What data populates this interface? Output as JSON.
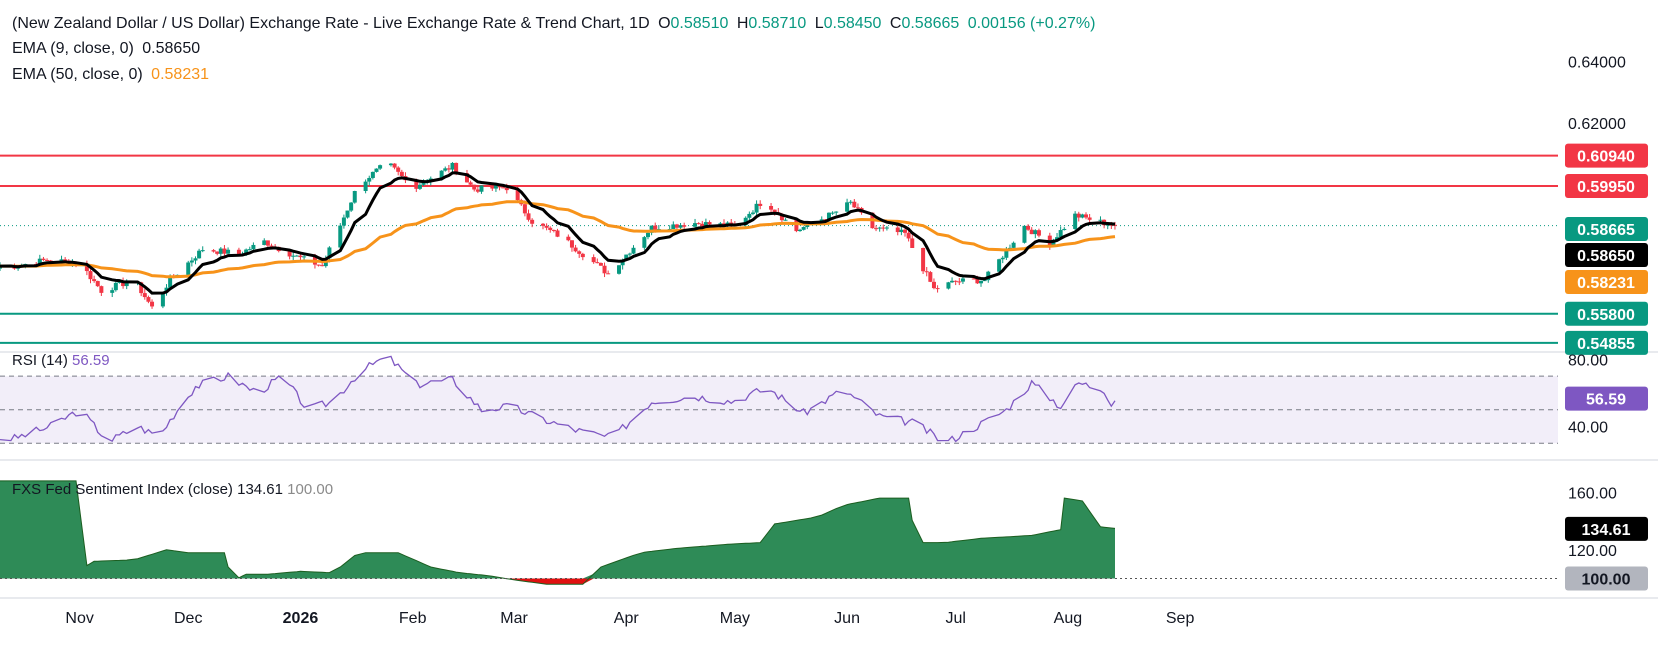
{
  "header": {
    "title": "(New Zealand Dollar / US Dollar) Exchange Rate - Live Exchange Rate & Trend Chart, 1D",
    "o_label": "O",
    "o": "0.58510",
    "h_label": "H",
    "h": "0.58710",
    "l_label": "L",
    "l": "0.58450",
    "c_label": "C",
    "c": "0.58665",
    "change": "0.00156 (+0.27%)",
    "ema9_label": "EMA (9, close, 0)",
    "ema9_value": "0.58650",
    "ema50_label": "EMA (50, close, 0)",
    "ema50_value": "0.58231"
  },
  "rsi_panel": {
    "label": "RSI (14)",
    "value": "56.59",
    "tag": "56.59",
    "ticks": [
      "80.00",
      "40.00"
    ]
  },
  "sentiment_panel": {
    "label": "FXS Fed Sentiment Index (close)",
    "value": "134.61",
    "baseline": "100.00",
    "ticks": [
      "160.00",
      "120.00"
    ],
    "tag_value": "134.61",
    "tag_baseline": "100.00"
  },
  "price_axis": {
    "ticks": [
      "0.64000",
      "0.62000"
    ]
  },
  "levels": [
    {
      "value": "0.60940",
      "color": "#f23645"
    },
    {
      "value": "0.59950",
      "color": "#f23645"
    },
    {
      "value": "0.55800",
      "color": "#089981"
    },
    {
      "value": "0.54855",
      "color": "#089981"
    }
  ],
  "price_tags": [
    {
      "value": "0.58665",
      "color": "#089981"
    },
    {
      "value": "0.58650",
      "color": "#000000"
    },
    {
      "value": "0.58231",
      "color": "#f7931a"
    }
  ],
  "months": [
    "Nov",
    "Dec",
    "2026",
    "Feb",
    "Mar",
    "Apr",
    "May",
    "Jun",
    "Jul",
    "Aug",
    "Sep"
  ],
  "colors": {
    "up": "#089981",
    "down": "#f23645",
    "ema9": "#000000",
    "ema50": "#f7931a",
    "rsi": "#7e57c2",
    "sentiment": "#2e8b57",
    "sentiment_neg": "#e01010"
  },
  "chart_data": {
    "type": "candlestick",
    "ylim": [
      0.542,
      0.645
    ],
    "price_anchors": [
      [
        "2025-10-14",
        0.5735
      ],
      [
        "2025-10-23",
        0.5755
      ],
      [
        "2025-11-01",
        0.5745
      ],
      [
        "2025-11-07",
        0.5655
      ],
      [
        "2025-11-16",
        0.569
      ],
      [
        "2025-11-21",
        0.56
      ],
      [
        "2025-11-26",
        0.569
      ],
      [
        "2025-12-05",
        0.579
      ],
      [
        "2025-12-15",
        0.5775
      ],
      [
        "2025-12-22",
        0.5815
      ],
      [
        "2025-12-31",
        0.5765
      ],
      [
        "2026-01-07",
        0.5735
      ],
      [
        "2026-01-17",
        0.6
      ],
      [
        "2026-01-25",
        0.607
      ],
      [
        "2026-02-01",
        0.599
      ],
      [
        "2026-02-12",
        0.606
      ],
      [
        "2026-02-18",
        0.5985
      ],
      [
        "2026-02-27",
        0.599
      ],
      [
        "2026-03-06",
        0.588
      ],
      [
        "2026-03-14",
        0.583
      ],
      [
        "2026-03-27",
        0.571
      ],
      [
        "2026-04-08",
        0.586
      ],
      [
        "2026-04-20",
        0.5875
      ],
      [
        "2026-05-01",
        0.5865
      ],
      [
        "2026-05-09",
        0.595
      ],
      [
        "2026-05-18",
        0.585
      ],
      [
        "2026-05-28",
        0.5905
      ],
      [
        "2026-06-02",
        0.594
      ],
      [
        "2026-06-08",
        0.586
      ],
      [
        "2026-06-17",
        0.584
      ],
      [
        "2026-06-25",
        0.566
      ],
      [
        "2026-07-01",
        0.5685
      ],
      [
        "2026-07-09",
        0.569
      ],
      [
        "2026-07-20",
        0.5865
      ],
      [
        "2026-07-27",
        0.581
      ],
      [
        "2026-08-03",
        0.59
      ],
      [
        "2026-08-11",
        0.5875
      ],
      [
        "2026-08-15",
        0.58665
      ]
    ],
    "ema9_last": 0.5865,
    "ema50_last": 0.58231,
    "horizontal_levels": [
      0.6094,
      0.5995,
      0.558,
      0.54855
    ],
    "rsi": {
      "ylim": [
        20,
        88
      ],
      "upper": 70,
      "mid": 50,
      "lower": 30,
      "last": 56.59,
      "anchors": [
        [
          "2025-10-14",
          33
        ],
        [
          "2025-10-24",
          40
        ],
        [
          "2025-11-01",
          50
        ],
        [
          "2025-11-09",
          31
        ],
        [
          "2025-11-17",
          40
        ],
        [
          "2025-11-23",
          34
        ],
        [
          "2025-11-27",
          47
        ],
        [
          "2025-12-03",
          64
        ],
        [
          "2025-12-12",
          70
        ],
        [
          "2025-12-20",
          60
        ],
        [
          "2025-12-27",
          70
        ],
        [
          "2026-01-03",
          50
        ],
        [
          "2026-01-10",
          55
        ],
        [
          "2026-01-17",
          72
        ],
        [
          "2026-01-25",
          82
        ],
        [
          "2026-02-02",
          65
        ],
        [
          "2026-02-12",
          68
        ],
        [
          "2026-02-20",
          50
        ],
        [
          "2026-02-28",
          52
        ],
        [
          "2026-03-08",
          45
        ],
        [
          "2026-03-18",
          38
        ],
        [
          "2026-03-28",
          33
        ],
        [
          "2026-04-08",
          55
        ],
        [
          "2026-04-20",
          58
        ],
        [
          "2026-04-30",
          55
        ],
        [
          "2026-05-10",
          63
        ],
        [
          "2026-05-20",
          48
        ],
        [
          "2026-05-31",
          62
        ],
        [
          "2026-06-10",
          46
        ],
        [
          "2026-06-20",
          42
        ],
        [
          "2026-06-28",
          30
        ],
        [
          "2026-07-05",
          38
        ],
        [
          "2026-07-15",
          50
        ],
        [
          "2026-07-22",
          66
        ],
        [
          "2026-07-30",
          52
        ],
        [
          "2026-08-04",
          66
        ],
        [
          "2026-08-11",
          62
        ],
        [
          "2026-08-13",
          54
        ],
        [
          "2026-08-15",
          56.59
        ]
      ]
    },
    "sentiment": {
      "ylim": [
        92,
        170
      ],
      "baseline": 100,
      "last": 134.61,
      "anchors": [
        [
          "2025-10-14",
          168
        ],
        [
          "2025-10-31",
          168
        ],
        [
          "2025-11-01",
          106
        ],
        [
          "2025-11-05",
          112
        ],
        [
          "2025-11-16",
          113
        ],
        [
          "2025-11-25",
          120
        ],
        [
          "2025-12-01",
          118
        ],
        [
          "2025-12-11",
          118
        ],
        [
          "2025-12-13",
          98
        ],
        [
          "2025-12-17",
          103
        ],
        [
          "2025-12-23",
          103
        ],
        [
          "2026-01-01",
          105
        ],
        [
          "2026-01-10",
          104
        ],
        [
          "2026-01-17",
          118
        ],
        [
          "2026-01-28",
          118
        ],
        [
          "2026-02-06",
          108
        ],
        [
          "2026-02-14",
          104
        ],
        [
          "2026-02-22",
          102
        ],
        [
          "2026-03-01",
          99
        ],
        [
          "2026-03-10",
          96
        ],
        [
          "2026-03-20",
          96
        ],
        [
          "2026-03-25",
          108
        ],
        [
          "2026-04-05",
          118
        ],
        [
          "2026-04-15",
          121
        ],
        [
          "2026-04-30",
          124
        ],
        [
          "2026-05-08",
          125
        ],
        [
          "2026-05-12",
          138
        ],
        [
          "2026-05-24",
          143
        ],
        [
          "2026-05-31",
          151
        ],
        [
          "2026-06-10",
          156
        ],
        [
          "2026-06-18",
          156
        ],
        [
          "2026-06-20",
          125
        ],
        [
          "2026-06-28",
          125
        ],
        [
          "2026-07-08",
          128
        ],
        [
          "2026-07-22",
          130
        ],
        [
          "2026-07-30",
          134
        ],
        [
          "2026-07-31",
          156
        ],
        [
          "2026-08-05",
          154
        ],
        [
          "2026-08-10",
          136
        ],
        [
          "2026-08-15",
          134.61
        ]
      ]
    }
  }
}
